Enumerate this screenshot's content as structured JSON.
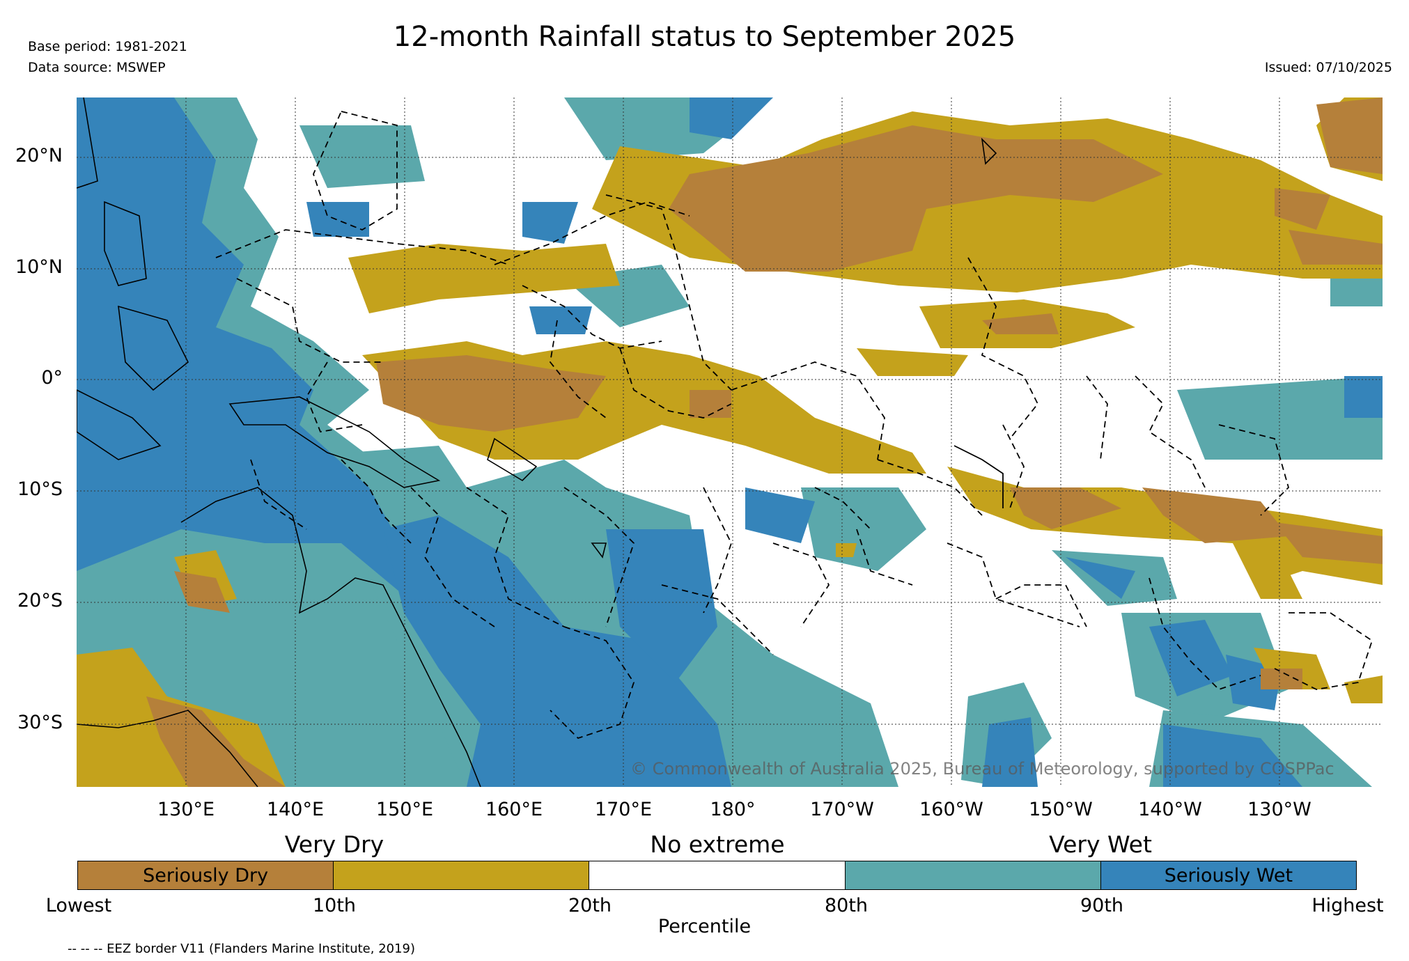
{
  "title": "12-month Rainfall status to September 2025",
  "meta": {
    "base_period": "Base period: 1981-2021",
    "data_source": "Data source: MSWEP",
    "issued": "Issued: 07/10/2025"
  },
  "map": {
    "lat_labels": [
      "20°N",
      "10°N",
      "0°",
      "10°S",
      "20°S",
      "30°S"
    ],
    "lon_labels": [
      "130°E",
      "140°E",
      "150°E",
      "160°E",
      "170°E",
      "180°",
      "170°W",
      "160°W",
      "150°W",
      "140°W",
      "130°W"
    ],
    "copyright": "© Commonwealth of Australia 2025, Bureau of Meteorology, supported by COSPPac"
  },
  "legend": {
    "category_labels": [
      "Very Dry",
      "No extreme",
      "Very Wet"
    ],
    "segments": [
      {
        "label": "Seriously Dry",
        "color": "#b5803a"
      },
      {
        "label": "",
        "color": "#c4a21c"
      },
      {
        "label": "",
        "color": "#ffffff"
      },
      {
        "label": "",
        "color": "#5ba8ab"
      },
      {
        "label": "Seriously Wet",
        "color": "#3584ba"
      }
    ],
    "percentile_ticks": [
      "Lowest",
      "10th",
      "20th",
      "80th",
      "90th",
      "Highest"
    ],
    "axis_label": "Percentile"
  },
  "eez_note": "-- -- -- EEZ border V11 (Flanders Marine Institute, 2019)",
  "colors": {
    "seriously_dry": "#b5803a",
    "very_dry": "#c4a21c",
    "no_extreme": "#ffffff",
    "very_wet": "#5ba8ab",
    "seriously_wet": "#3584ba"
  }
}
